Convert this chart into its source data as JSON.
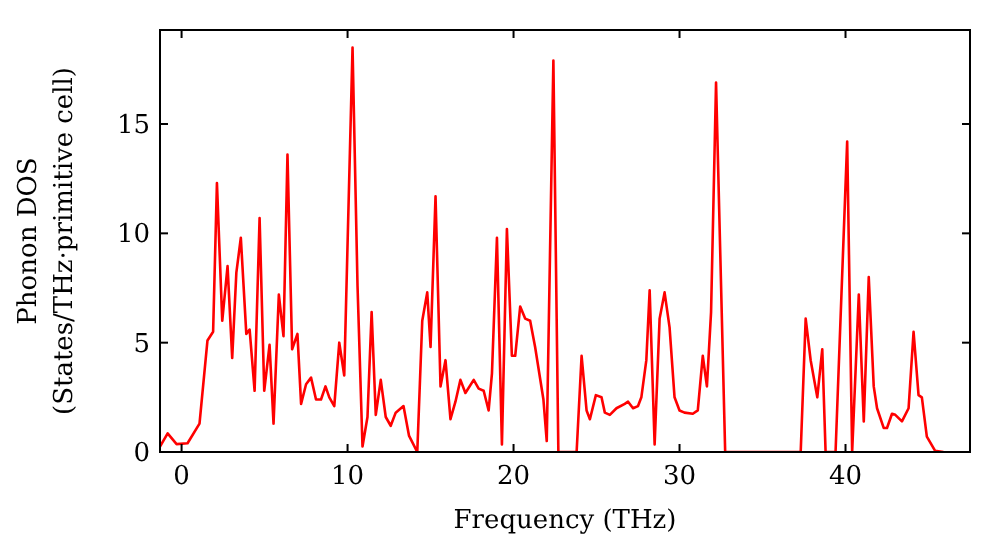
{
  "chart_data": {
    "type": "line",
    "xlabel": "Frequency (THz)",
    "ylabel": "Phonon DOS\n(States/THz·primitive cell)",
    "xlim": [
      -1.3,
      47.5
    ],
    "ylim": [
      0,
      19.3
    ],
    "xticks": [
      0,
      10,
      20,
      30,
      40
    ],
    "yticks": [
      0,
      5,
      10,
      15
    ],
    "grid": false,
    "marker": "none",
    "line_style": "solid",
    "series": [
      {
        "color": "#ff0000",
        "x": [
          -1.3,
          -0.84,
          -0.3,
          0.36,
          1.08,
          1.56,
          1.9,
          2.13,
          2.45,
          2.77,
          3.05,
          3.3,
          3.57,
          3.9,
          4.1,
          4.4,
          4.7,
          4.98,
          5.3,
          5.54,
          5.86,
          6.14,
          6.38,
          6.66,
          6.98,
          7.2,
          7.5,
          7.8,
          8.1,
          8.4,
          8.67,
          8.9,
          9.2,
          9.5,
          9.8,
          10.3,
          10.6,
          10.9,
          11.2,
          11.45,
          11.7,
          12.0,
          12.3,
          12.6,
          12.9,
          13.37,
          13.7,
          14.2,
          14.5,
          14.8,
          15.0,
          15.3,
          15.6,
          15.9,
          16.2,
          16.5,
          16.8,
          17.1,
          17.6,
          17.9,
          18.2,
          18.5,
          18.7,
          19.0,
          19.3,
          19.6,
          19.9,
          20.1,
          20.4,
          20.7,
          21.0,
          21.3,
          21.8,
          22.0,
          22.4,
          22.7,
          23.8,
          24.1,
          24.4,
          24.6,
          24.96,
          25.3,
          25.5,
          25.8,
          26.2,
          26.7,
          26.9,
          27.2,
          27.5,
          27.7,
          28.0,
          28.2,
          28.5,
          28.8,
          29.1,
          29.4,
          29.7,
          30.0,
          30.3,
          30.8,
          31.1,
          31.4,
          31.65,
          31.9,
          32.2,
          32.75,
          37.3,
          37.6,
          37.9,
          38.3,
          38.6,
          38.8,
          39.4,
          40.1,
          40.4,
          40.8,
          41.1,
          41.4,
          41.7,
          41.9,
          42.3,
          42.5,
          42.8,
          43.0,
          43.4,
          43.8,
          44.1,
          44.4,
          44.6,
          44.9,
          45.4,
          45.9
        ],
        "values": [
          0.25,
          0.85,
          0.36,
          0.4,
          1.3,
          5.1,
          5.5,
          12.3,
          6.0,
          8.5,
          4.3,
          8.2,
          9.8,
          5.4,
          5.6,
          2.8,
          10.7,
          2.8,
          4.9,
          1.3,
          7.2,
          5.3,
          13.6,
          4.7,
          5.4,
          2.2,
          3.1,
          3.4,
          2.4,
          2.4,
          3.0,
          2.5,
          2.1,
          5.0,
          3.5,
          18.5,
          7.6,
          0.25,
          1.6,
          6.4,
          1.7,
          3.3,
          1.6,
          1.2,
          1.8,
          2.1,
          0.75,
          0,
          6.0,
          7.3,
          4.8,
          11.7,
          3.0,
          4.2,
          1.5,
          2.3,
          3.3,
          2.7,
          3.3,
          2.9,
          2.8,
          1.9,
          3.6,
          9.8,
          0.35,
          10.2,
          4.4,
          4.4,
          6.65,
          6.1,
          6.0,
          4.8,
          2.4,
          0.5,
          17.9,
          0,
          0,
          4.4,
          1.9,
          1.5,
          2.6,
          2.5,
          1.8,
          1.7,
          2.0,
          2.2,
          2.3,
          2.0,
          2.1,
          2.5,
          4.2,
          7.4,
          0.35,
          6.1,
          7.3,
          5.7,
          2.5,
          1.9,
          1.8,
          1.75,
          1.9,
          4.4,
          3.0,
          6.4,
          16.9,
          0,
          0,
          6.1,
          4.2,
          2.5,
          4.7,
          0,
          0,
          14.2,
          0,
          7.2,
          1.4,
          8.0,
          3.0,
          2.0,
          1.1,
          1.1,
          1.75,
          1.7,
          1.4,
          2.0,
          5.5,
          2.6,
          2.5,
          0.7,
          0.05,
          0
        ]
      }
    ]
  }
}
